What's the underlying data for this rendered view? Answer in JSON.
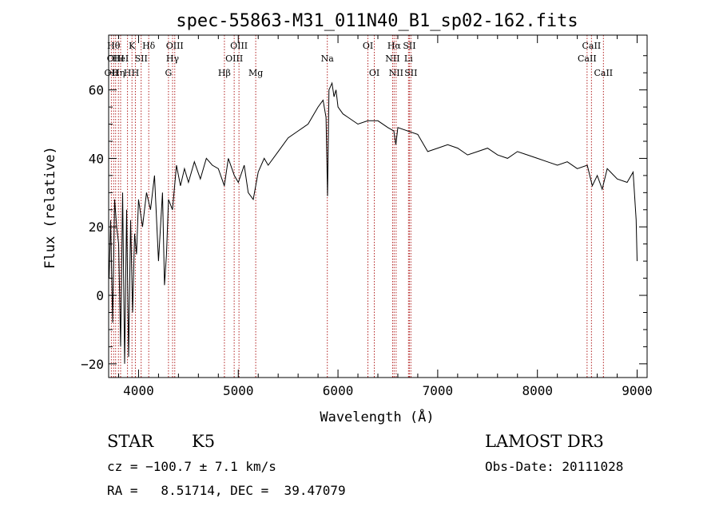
{
  "chart_data": {
    "type": "line",
    "title": "spec-55863-M31_011N40_B1_sp02-162.fits",
    "xlabel": "Wavelength (Å)",
    "ylabel": "Flux (relative)",
    "xlim": [
      3700,
      9100
    ],
    "ylim": [
      -24,
      76
    ],
    "xticks": [
      4000,
      5000,
      6000,
      7000,
      8000,
      9000
    ],
    "xtick_labels": [
      "4000",
      "5000",
      "6000",
      "7000",
      "8000",
      "9000"
    ],
    "yticks": [
      -20,
      0,
      20,
      40,
      60
    ],
    "ytick_labels": [
      "−20",
      "0",
      "20",
      "40",
      "60"
    ],
    "grid": false,
    "series": [
      {
        "name": "spectrum",
        "x": [
          3705,
          3720,
          3740,
          3760,
          3780,
          3800,
          3820,
          3840,
          3860,
          3880,
          3900,
          3920,
          3940,
          3960,
          3980,
          4000,
          4040,
          4080,
          4120,
          4160,
          4200,
          4240,
          4260,
          4280,
          4300,
          4340,
          4380,
          4420,
          4460,
          4500,
          4560,
          4620,
          4680,
          4740,
          4800,
          4860,
          4900,
          4960,
          5000,
          5060,
          5100,
          5150,
          5200,
          5260,
          5300,
          5400,
          5500,
          5600,
          5700,
          5800,
          5850,
          5880,
          5895,
          5910,
          5940,
          5960,
          5980,
          6000,
          6050,
          6100,
          6200,
          6300,
          6400,
          6500,
          6560,
          6580,
          6600,
          6700,
          6800,
          6900,
          7000,
          7100,
          7200,
          7300,
          7400,
          7500,
          7600,
          7700,
          7800,
          7900,
          8000,
          8100,
          8200,
          8300,
          8400,
          8500,
          8550,
          8600,
          8650,
          8700,
          8800,
          8900,
          8960,
          8990,
          9000
        ],
        "y": [
          5,
          22,
          -8,
          28,
          20,
          15,
          -15,
          30,
          -20,
          25,
          -18,
          22,
          -5,
          18,
          12,
          28,
          20,
          30,
          25,
          35,
          10,
          30,
          3,
          12,
          28,
          25,
          38,
          32,
          37,
          33,
          39,
          34,
          40,
          38,
          37,
          32,
          40,
          35,
          33,
          38,
          30,
          28,
          36,
          40,
          38,
          42,
          46,
          48,
          50,
          55,
          57,
          52,
          29,
          60,
          62,
          58,
          60,
          55,
          53,
          52,
          50,
          51,
          51,
          49,
          48,
          44,
          49,
          48,
          47,
          42,
          43,
          44,
          43,
          41,
          42,
          43,
          41,
          40,
          42,
          41,
          40,
          39,
          38,
          39,
          37,
          38,
          32,
          35,
          31,
          37,
          34,
          33,
          36,
          22,
          10
        ]
      }
    ],
    "lines": [
      {
        "wl": 3727,
        "label": "OII",
        "row": 3
      },
      {
        "wl": 3750,
        "label": "Hθ",
        "row": 1
      },
      {
        "wl": 3770,
        "label": "OIII",
        "row": 2
      },
      {
        "wl": 3798,
        "label": "Hη",
        "row": 3
      },
      {
        "wl": 3820,
        "label": "HeI",
        "row": 2
      },
      {
        "wl": 3889,
        "label": "H",
        "row": 3
      },
      {
        "wl": 3934,
        "label": "K",
        "row": 1
      },
      {
        "wl": 3968,
        "label": "H",
        "row": 3
      },
      {
        "wl": 4026,
        "label": "SII",
        "row": 2
      },
      {
        "wl": 4102,
        "label": "Hδ",
        "row": 1
      },
      {
        "wl": 4300,
        "label": "G",
        "row": 3
      },
      {
        "wl": 4341,
        "label": "Hγ",
        "row": 2
      },
      {
        "wl": 4363,
        "label": "OIII",
        "row": 1
      },
      {
        "wl": 4861,
        "label": "Hβ",
        "row": 3
      },
      {
        "wl": 4959,
        "label": "OIII",
        "row": 2
      },
      {
        "wl": 5007,
        "label": "OIII",
        "row": 1
      },
      {
        "wl": 5175,
        "label": "Mg",
        "row": 3
      },
      {
        "wl": 5893,
        "label": "Na",
        "row": 2
      },
      {
        "wl": 6300,
        "label": "OI",
        "row": 1
      },
      {
        "wl": 6364,
        "label": "OI",
        "row": 3
      },
      {
        "wl": 6548,
        "label": "NII",
        "row": 2
      },
      {
        "wl": 6563,
        "label": "Hα",
        "row": 1
      },
      {
        "wl": 6583,
        "label": "NII",
        "row": 3
      },
      {
        "wl": 6707,
        "label": "Li",
        "row": 2
      },
      {
        "wl": 6716,
        "label": "SII",
        "row": 1
      },
      {
        "wl": 6731,
        "label": "SII",
        "row": 3
      },
      {
        "wl": 8498,
        "label": "CaII",
        "row": 2
      },
      {
        "wl": 8542,
        "label": "CaII",
        "row": 1
      },
      {
        "wl": 8662,
        "label": "CaII",
        "row": 3
      }
    ]
  },
  "info": {
    "class_label": "STAR",
    "subclass": "K5",
    "survey": "LAMOST DR3",
    "cz": "cz = −100.7 ± 7.1 km/s",
    "obs_date": "Obs-Date: 20111028",
    "radec": "RA =   8.51714, DEC =  39.47079"
  }
}
